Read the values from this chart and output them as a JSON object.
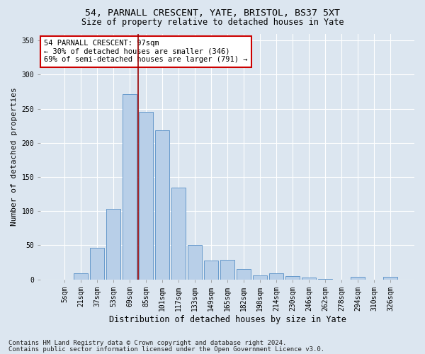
{
  "title1": "54, PARNALL CRESCENT, YATE, BRISTOL, BS37 5XT",
  "title2": "Size of property relative to detached houses in Yate",
  "xlabel": "Distribution of detached houses by size in Yate",
  "ylabel": "Number of detached properties",
  "categories": [
    "5sqm",
    "21sqm",
    "37sqm",
    "53sqm",
    "69sqm",
    "85sqm",
    "101sqm",
    "117sqm",
    "133sqm",
    "149sqm",
    "165sqm",
    "182sqm",
    "198sqm",
    "214sqm",
    "230sqm",
    "246sqm",
    "262sqm",
    "278sqm",
    "294sqm",
    "310sqm",
    "326sqm"
  ],
  "values": [
    0,
    9,
    46,
    103,
    271,
    245,
    218,
    134,
    50,
    28,
    29,
    15,
    6,
    9,
    5,
    3,
    1,
    0,
    4,
    0,
    4
  ],
  "bar_color": "#b8cfe8",
  "bar_edge_color": "#6699cc",
  "background_color": "#dce6f0",
  "grid_color": "#ffffff",
  "vline_color": "#990000",
  "vline_pos": 4.5,
  "annotation_text": "54 PARNALL CRESCENT: 97sqm\n← 30% of detached houses are smaller (346)\n69% of semi-detached houses are larger (791) →",
  "annotation_box_color": "#ffffff",
  "annotation_box_edge": "#cc0000",
  "footnote1": "Contains HM Land Registry data © Crown copyright and database right 2024.",
  "footnote2": "Contains public sector information licensed under the Open Government Licence v3.0.",
  "ylim": [
    0,
    360
  ],
  "yticks": [
    0,
    50,
    100,
    150,
    200,
    250,
    300,
    350
  ],
  "title1_fontsize": 9.5,
  "title2_fontsize": 8.5,
  "xlabel_fontsize": 8.5,
  "ylabel_fontsize": 8,
  "tick_fontsize": 7,
  "annotation_fontsize": 7.5,
  "footnote_fontsize": 6.5
}
